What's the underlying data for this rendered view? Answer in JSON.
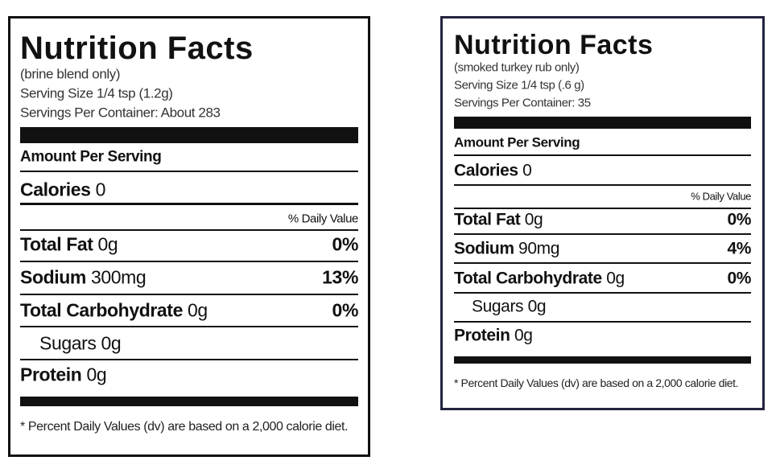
{
  "labels": [
    {
      "title": "Nutrition Facts",
      "subtitle": "(brine blend only)",
      "serving_size": "Serving Size 1/4 tsp (1.2g)",
      "servings": "Servings Per Container: About 283",
      "amount_per_serving": "Amount Per Serving",
      "calories": {
        "label": "Calories",
        "value": "0"
      },
      "daily_value_header": "% Daily Value",
      "rows": [
        {
          "name": "Total Fat",
          "amount": "0g",
          "dv": "0%"
        },
        {
          "name": "Sodium",
          "amount": "300mg",
          "dv": "13%"
        },
        {
          "name": "Total Carbohydrate",
          "amount": "0g",
          "dv": "0%"
        },
        {
          "name": "Sugars",
          "amount": "0g"
        },
        {
          "name": "Protein",
          "amount": "0g"
        }
      ],
      "footnote": "* Percent Daily Values (dv) are based on a 2,000 calorie diet."
    },
    {
      "title": "Nutrition Facts",
      "subtitle": "(smoked turkey rub only)",
      "serving_size": "Serving Size 1/4 tsp (.6 g)",
      "servings": "Servings Per Container: 35",
      "amount_per_serving": "Amount Per Serving",
      "calories": {
        "label": "Calories",
        "value": "0"
      },
      "daily_value_header": "% Daily Value",
      "rows": [
        {
          "name": "Total Fat",
          "amount": "0g",
          "dv": "0%"
        },
        {
          "name": "Sodium",
          "amount": "90mg",
          "dv": "4%"
        },
        {
          "name": "Total Carbohydrate",
          "amount": "0g",
          "dv": "0%"
        },
        {
          "name": "Sugars",
          "amount": "0g"
        },
        {
          "name": "Protein",
          "amount": "0g"
        }
      ],
      "footnote": "* Percent Daily Values (dv) are based on a 2,000 calorie diet."
    }
  ]
}
